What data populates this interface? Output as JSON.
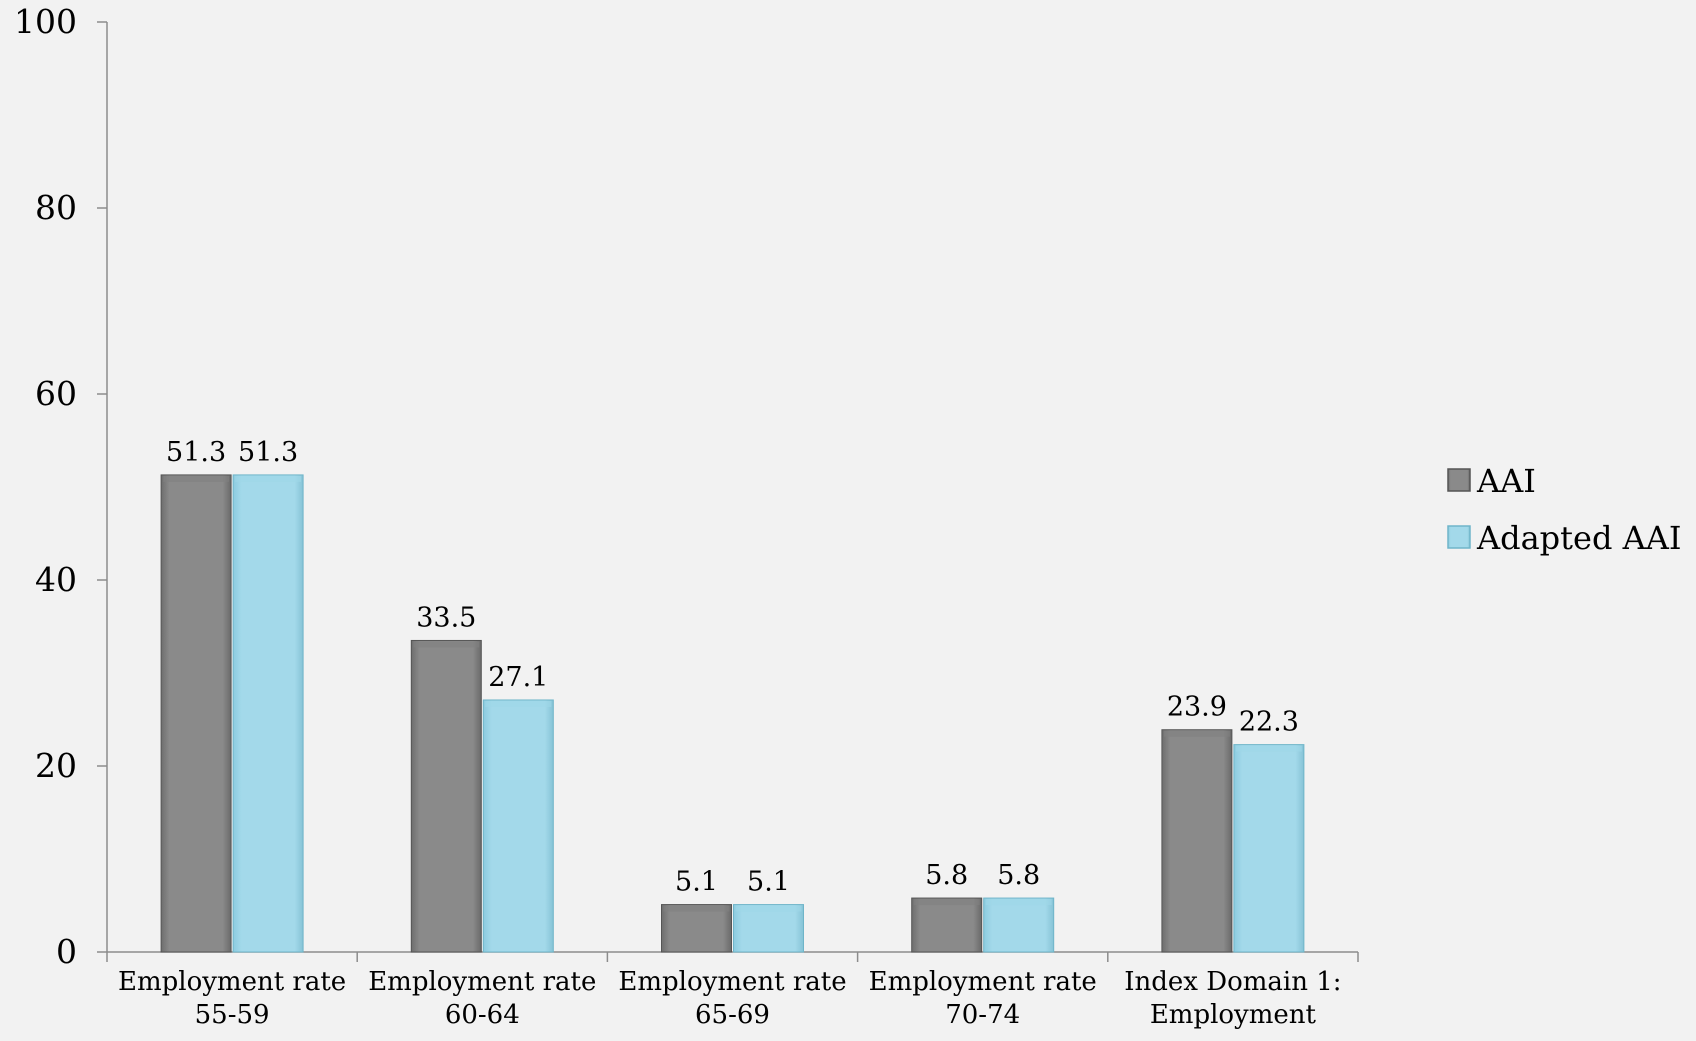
{
  "chart_data": {
    "type": "bar",
    "categories": [
      [
        "Employment rate",
        "55-59"
      ],
      [
        "Employment rate",
        "60-64"
      ],
      [
        "Employment rate",
        "65-69"
      ],
      [
        "Employment rate",
        "70-74"
      ],
      [
        "Index Domain 1:",
        "Employment"
      ]
    ],
    "series": [
      {
        "name": "AAI",
        "values": [
          51.3,
          33.5,
          5.1,
          5.8,
          23.9
        ],
        "labels": [
          "51.3",
          "33.5",
          "5.1",
          "5.8",
          "23.9"
        ],
        "color": "#808080",
        "edge_color": "#555555"
      },
      {
        "name": "Adapted AAI",
        "values": [
          51.3,
          27.1,
          5.1,
          5.8,
          22.3
        ],
        "labels": [
          "51.3",
          "27.1",
          "5.1",
          "5.8",
          "22.3"
        ],
        "color": "#9fd7e8",
        "edge_color": "#6fb5c9"
      }
    ],
    "yticks": [
      "0",
      "20",
      "40",
      "60",
      "80",
      "100"
    ],
    "ylim": [
      0,
      100
    ],
    "title": "",
    "xlabel": "",
    "ylabel": "",
    "grid": false,
    "legend_position": "right"
  },
  "page_background": "#f2f2f2",
  "axis_color": "#8c8c8c"
}
